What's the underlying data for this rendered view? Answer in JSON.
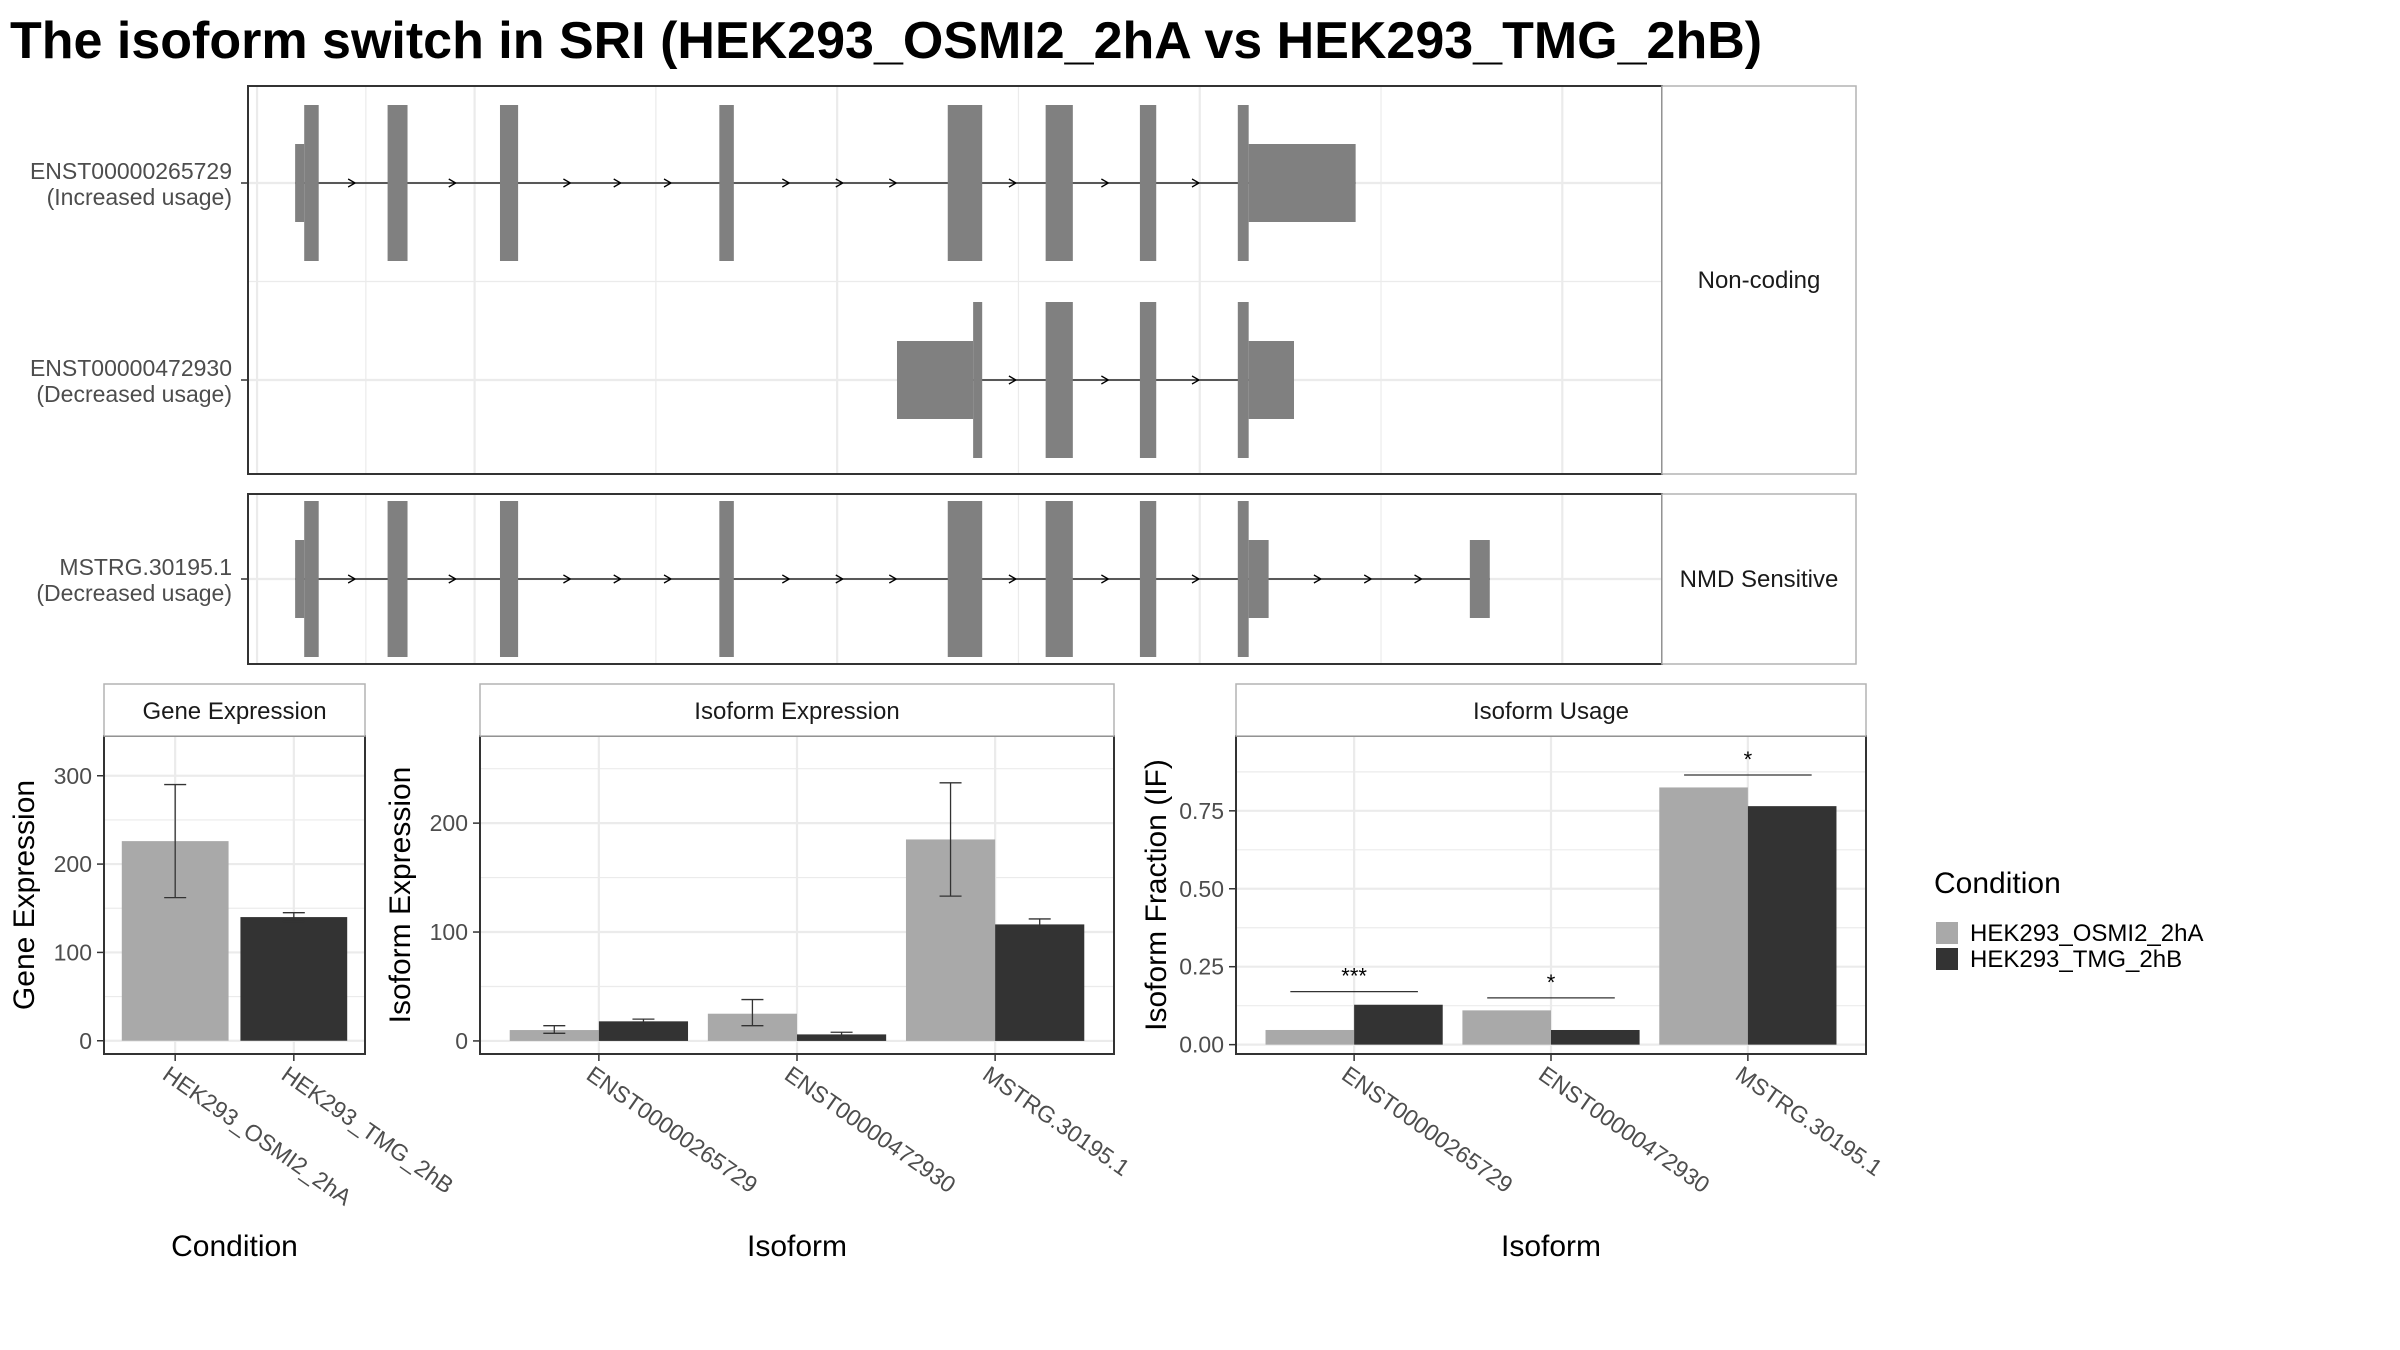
{
  "chart_data": [
    {
      "type": "gene-structure",
      "title": "The isoform switch in SRI (HEK293_OSMI2_2hA vs HEK293_TMG_2hB)",
      "groups": [
        {
          "label": "Non-coding",
          "transcripts": [
            {
              "id": "ENST00000265729",
              "usage": "(Increased usage)",
              "exons": [
                {
                  "s": 101,
                  "e": 106,
                  "h": "small"
                },
                {
                  "s": 106,
                  "e": 114,
                  "h": "big"
                },
                {
                  "s": 152,
                  "e": 163,
                  "h": "big"
                },
                {
                  "s": 214,
                  "e": 224,
                  "h": "big"
                },
                {
                  "s": 335,
                  "e": 343,
                  "h": "big"
                },
                {
                  "s": 461,
                  "e": 480,
                  "h": "big"
                },
                {
                  "s": 515,
                  "e": 530,
                  "h": "big"
                },
                {
                  "s": 567,
                  "e": 576,
                  "h": "big"
                },
                {
                  "s": 621,
                  "e": 627,
                  "h": "big"
                },
                {
                  "s": 627,
                  "e": 686,
                  "h": "small"
                }
              ]
            },
            {
              "id": "ENST00000472930",
              "usage": "(Decreased usage)",
              "exons": [
                {
                  "s": 433,
                  "e": 475,
                  "h": "small"
                },
                {
                  "s": 475,
                  "e": 480,
                  "h": "big"
                },
                {
                  "s": 515,
                  "e": 530,
                  "h": "big"
                },
                {
                  "s": 567,
                  "e": 576,
                  "h": "big"
                },
                {
                  "s": 621,
                  "e": 627,
                  "h": "big"
                },
                {
                  "s": 627,
                  "e": 652,
                  "h": "small"
                }
              ]
            }
          ]
        },
        {
          "label": "NMD Sensitive",
          "transcripts": [
            {
              "id": "MSTRG.30195.1",
              "usage": "(Decreased usage)",
              "exons": [
                {
                  "s": 101,
                  "e": 106,
                  "h": "small"
                },
                {
                  "s": 106,
                  "e": 114,
                  "h": "big"
                },
                {
                  "s": 152,
                  "e": 163,
                  "h": "big"
                },
                {
                  "s": 214,
                  "e": 224,
                  "h": "big"
                },
                {
                  "s": 335,
                  "e": 343,
                  "h": "big"
                },
                {
                  "s": 461,
                  "e": 480,
                  "h": "big"
                },
                {
                  "s": 515,
                  "e": 530,
                  "h": "big"
                },
                {
                  "s": 567,
                  "e": 576,
                  "h": "big"
                },
                {
                  "s": 621,
                  "e": 627,
                  "h": "big"
                },
                {
                  "s": 627,
                  "e": 638,
                  "h": "small"
                },
                {
                  "s": 749,
                  "e": 760,
                  "h": "small"
                }
              ]
            }
          ]
        }
      ],
      "xlim": [
        75,
        855
      ],
      "grid": true
    },
    {
      "type": "bar",
      "title": "Gene Expression",
      "xlabel": "Condition",
      "ylabel": "Gene Expression",
      "ylim": [
        -15,
        345
      ],
      "yticks": [
        0,
        100,
        200,
        300
      ],
      "ytick_labels": [
        "0",
        "100",
        "200",
        "300"
      ],
      "categories": [
        "HEK293_OSMI2_2hA",
        "HEK293_TMG_2hB"
      ],
      "bars": [
        {
          "category": "HEK293_OSMI2_2hA",
          "condition": "HEK293_OSMI2_2hA",
          "value": 226,
          "err_low": 162,
          "err_high": 290
        },
        {
          "category": "HEK293_TMG_2hB",
          "condition": "HEK293_TMG_2hB",
          "value": 140,
          "err_low": 135,
          "err_high": 145
        }
      ]
    },
    {
      "type": "bar",
      "title": "Isoform Expression",
      "xlabel": "Isoform",
      "ylabel": "Isoform Expression",
      "ylim": [
        -12,
        280
      ],
      "yticks": [
        0,
        100,
        200
      ],
      "ytick_labels": [
        "0",
        "100",
        "200"
      ],
      "categories": [
        "ENST00000265729",
        "ENST00000472930",
        "MSTRG.30195.1"
      ],
      "series": [
        {
          "name": "HEK293_OSMI2_2hA",
          "values": [
            10,
            25,
            185
          ],
          "err_low": [
            7,
            14,
            133
          ],
          "err_high": [
            14,
            38,
            237
          ]
        },
        {
          "name": "HEK293_TMG_2hB",
          "values": [
            18,
            6,
            107
          ],
          "err_low": [
            16,
            5,
            102
          ],
          "err_high": [
            20,
            8,
            112
          ]
        }
      ]
    },
    {
      "type": "bar",
      "title": "Isoform Usage",
      "xlabel": "Isoform",
      "ylabel": "Isoform Fraction (IF)",
      "ylim": [
        -0.03,
        0.99
      ],
      "yticks": [
        0,
        0.25,
        0.5,
        0.75
      ],
      "ytick_labels": [
        "0.00",
        "0.25",
        "0.50",
        "0.75"
      ],
      "categories": [
        "ENST00000265729",
        "ENST00000472930",
        "MSTRG.30195.1"
      ],
      "series": [
        {
          "name": "HEK293_OSMI2_2hA",
          "values": [
            0.047,
            0.11,
            0.825
          ]
        },
        {
          "name": "HEK293_TMG_2hB",
          "values": [
            0.128,
            0.047,
            0.765
          ]
        }
      ],
      "significance": [
        {
          "category_index": 0,
          "label": "***",
          "y": 0.17
        },
        {
          "category_index": 1,
          "label": "*",
          "y": 0.15
        },
        {
          "category_index": 2,
          "label": "*",
          "y": 0.865
        }
      ]
    }
  ],
  "legend": {
    "title": "Condition",
    "items": [
      {
        "label": "HEK293_OSMI2_2hA",
        "color": "#a9a9a9"
      },
      {
        "label": "HEK293_TMG_2hB",
        "color": "#333333"
      }
    ]
  },
  "colors": {
    "exon": "#808080",
    "condition_a": "#a9a9a9",
    "condition_b": "#333333",
    "grid": "#ebebeb",
    "strip_border": "#b3b3b3",
    "panel_border": "#333333"
  }
}
